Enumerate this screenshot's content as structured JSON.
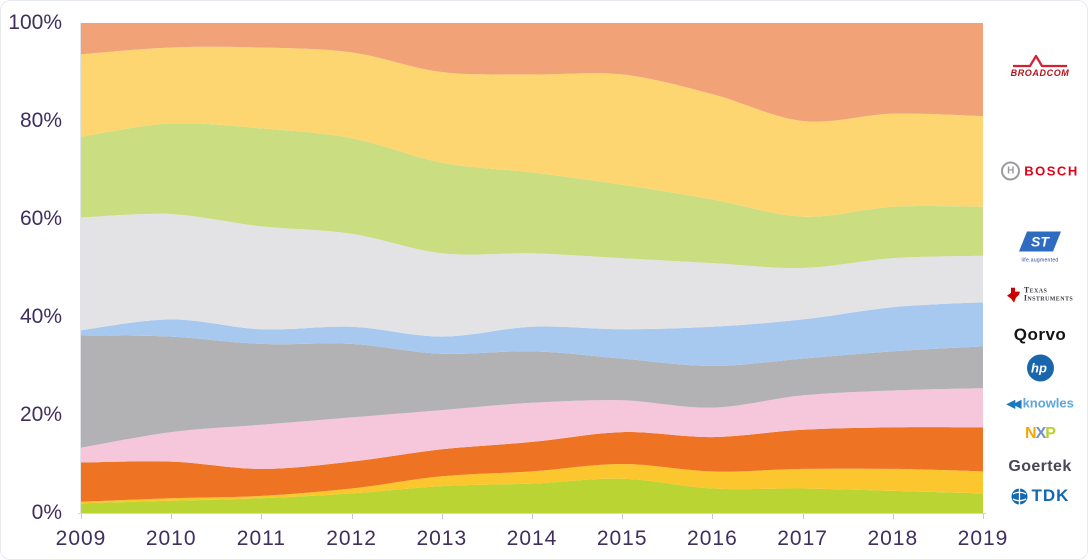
{
  "page": {
    "background": "#ffffff"
  },
  "chart_data": {
    "type": "area",
    "stacked": true,
    "percent_stacked": true,
    "title": "",
    "xlabel": "",
    "ylabel": "",
    "x": [
      2009,
      2010,
      2011,
      2012,
      2013,
      2014,
      2015,
      2016,
      2017,
      2018,
      2019
    ],
    "x_tick_labels": [
      "2009",
      "2010",
      "2011",
      "2012",
      "2013",
      "2014",
      "2015",
      "2016",
      "2017",
      "2018",
      "2019"
    ],
    "y_axis": {
      "min": 0,
      "max": 100,
      "ticks": [
        {
          "value": 0,
          "label": "0%"
        },
        {
          "value": 20,
          "label": "20%"
        },
        {
          "value": 40,
          "label": "40%"
        },
        {
          "value": 60,
          "label": "60%"
        },
        {
          "value": 80,
          "label": "80%"
        },
        {
          "value": 100,
          "label": "100%"
        }
      ]
    },
    "grid": false,
    "legend_position": "right",
    "series_bottom_to_top": true,
    "series": [
      {
        "name": "TDK",
        "color": "#b9d433",
        "values": [
          2.0,
          2.5,
          3.0,
          4.0,
          5.5,
          6.0,
          7.0,
          5.0,
          5.0,
          4.5,
          4.0
        ]
      },
      {
        "name": "Goertek",
        "color": "#fbc62e",
        "values": [
          0.3,
          0.5,
          0.5,
          1.0,
          2.0,
          2.5,
          3.0,
          3.5,
          4.0,
          4.5,
          4.5
        ]
      },
      {
        "name": "NXP",
        "color": "#ee7323",
        "values": [
          8.0,
          7.5,
          5.5,
          5.5,
          5.5,
          6.0,
          6.5,
          7.0,
          8.0,
          8.5,
          9.0
        ]
      },
      {
        "name": "Knowles",
        "color": "#f6c7da",
        "values": [
          3.0,
          6.0,
          9.0,
          9.0,
          8.0,
          8.0,
          6.5,
          6.0,
          7.0,
          7.5,
          8.0
        ]
      },
      {
        "name": "HP",
        "color": "#b2b2b4",
        "values": [
          23.0,
          19.5,
          16.5,
          15.0,
          11.5,
          10.5,
          8.5,
          8.5,
          7.5,
          8.0,
          8.5
        ]
      },
      {
        "name": "Qorvo",
        "color": "#a7c9ef",
        "values": [
          1.0,
          3.5,
          3.0,
          3.5,
          3.5,
          5.0,
          6.0,
          8.0,
          8.0,
          9.0,
          9.0
        ]
      },
      {
        "name": "Texas Instruments",
        "color": "#e3e3e5",
        "values": [
          23.0,
          21.5,
          21.0,
          19.0,
          17.0,
          15.0,
          14.5,
          13.0,
          10.5,
          10.0,
          9.5
        ]
      },
      {
        "name": "STMicroelectronics",
        "color": "#cadd81",
        "values": [
          16.5,
          18.5,
          20.0,
          19.5,
          18.5,
          16.5,
          15.0,
          13.0,
          10.5,
          10.5,
          10.0
        ]
      },
      {
        "name": "Bosch",
        "color": "#fdd672",
        "values": [
          16.8,
          15.5,
          16.5,
          17.5,
          18.5,
          20.0,
          22.5,
          21.5,
          19.5,
          19.0,
          18.5
        ]
      },
      {
        "name": "Broadcom",
        "color": "#f1a276",
        "values": [
          6.4,
          5.0,
          5.0,
          6.0,
          10.0,
          10.5,
          10.5,
          14.5,
          20.0,
          18.5,
          19.0
        ]
      }
    ]
  },
  "legend_logos": [
    {
      "id": "broadcom",
      "name": "Broadcom",
      "text": "BROADCOM"
    },
    {
      "id": "bosch",
      "name": "Bosch",
      "icon_letter": "H",
      "text": "BOSCH"
    },
    {
      "id": "st",
      "name": "STMicroelectronics",
      "text": "ST",
      "tagline": "life.augmented"
    },
    {
      "id": "texas-instruments",
      "name": "Texas Instruments",
      "line1": "Texas",
      "line2": "Instruments"
    },
    {
      "id": "qorvo",
      "name": "Qorvo",
      "text": "Qorvo"
    },
    {
      "id": "hp",
      "name": "HP",
      "text": "hp"
    },
    {
      "id": "knowles",
      "name": "Knowles",
      "chevrons": "◀◀",
      "text": "knowles"
    },
    {
      "id": "nxp",
      "name": "NXP",
      "l1": "N",
      "l2": "X",
      "l3": "P"
    },
    {
      "id": "goertek",
      "name": "Goertek",
      "text": "Goertek"
    },
    {
      "id": "tdk",
      "name": "TDK",
      "text": "TDK"
    }
  ]
}
